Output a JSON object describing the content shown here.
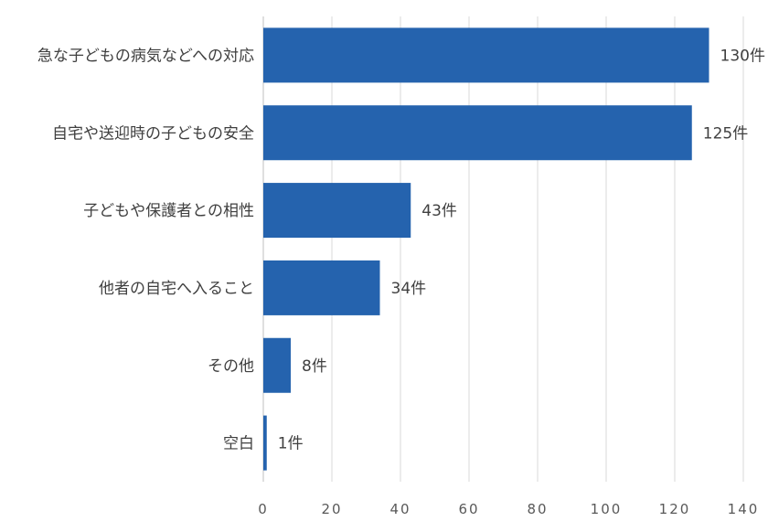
{
  "chart_data": {
    "type": "bar",
    "orientation": "horizontal",
    "categories": [
      "急な子どもの病気などへの対応",
      "自宅や送迎時の子どもの安全",
      "子どもや保護者との相性",
      "他者の自宅へ入ること",
      "その他",
      "空白"
    ],
    "values": [
      130,
      125,
      43,
      34,
      8,
      1
    ],
    "value_labels": [
      "130件",
      "125件",
      "43件",
      "34件",
      "8件",
      "1件"
    ],
    "xlim": [
      0,
      140
    ],
    "xticks": [
      0,
      20,
      40,
      60,
      80,
      100,
      120,
      140
    ],
    "grid": true,
    "bar_color": "#2563ae"
  }
}
